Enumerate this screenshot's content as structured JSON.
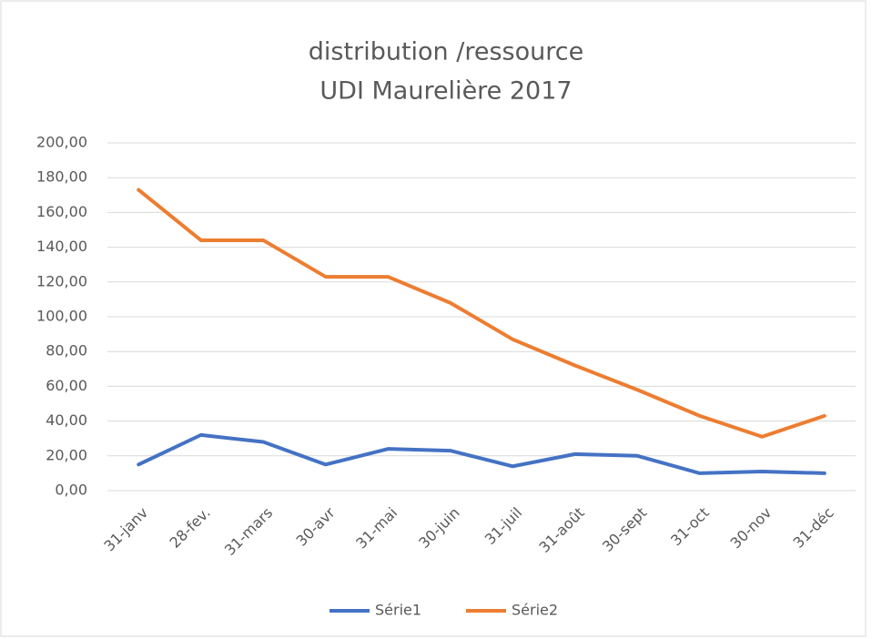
{
  "chart_data": {
    "type": "line",
    "title": [
      "distribution /ressource",
      "UDI Maurelière 2017"
    ],
    "categories": [
      "31-janv",
      "28-fev.",
      "31-mars",
      "30-avr",
      "31-mai",
      "30-juin",
      "31-juil",
      "31-août",
      "30-sept",
      "31-oct",
      "30-nov",
      "31-déc"
    ],
    "series": [
      {
        "name": "Série1",
        "color": "#4472c4",
        "values": [
          15,
          32,
          28,
          15,
          24,
          23,
          14,
          21,
          20,
          10,
          11,
          10
        ]
      },
      {
        "name": "Série2",
        "color": "#ed7d31",
        "values": [
          173,
          144,
          144,
          123,
          123,
          108,
          87,
          72,
          58,
          43,
          31,
          43
        ]
      }
    ],
    "ylim": [
      0,
      200
    ],
    "yticks": [
      {
        "value": 0,
        "label": "0,00"
      },
      {
        "value": 20,
        "label": "20,00"
      },
      {
        "value": 40,
        "label": "40,00"
      },
      {
        "value": 60,
        "label": "60,00"
      },
      {
        "value": 80,
        "label": "80,00"
      },
      {
        "value": 100,
        "label": "100,00"
      },
      {
        "value": 120,
        "label": "120,00"
      },
      {
        "value": 140,
        "label": "140,00"
      },
      {
        "value": 160,
        "label": "160,00"
      },
      {
        "value": 180,
        "label": "180,00"
      },
      {
        "value": 200,
        "label": "200,00"
      }
    ],
    "grid": true,
    "legend": "bottom"
  }
}
